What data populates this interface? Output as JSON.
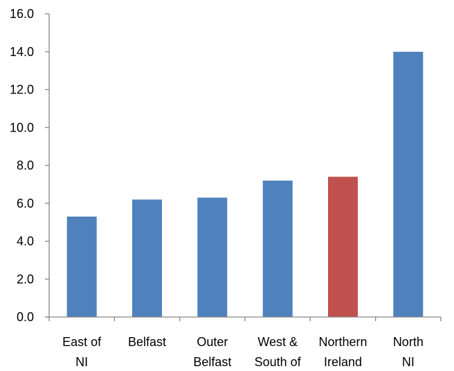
{
  "chart_data": {
    "type": "bar",
    "categories": [
      [
        "East of",
        "NI"
      ],
      [
        "Belfast"
      ],
      [
        "Outer",
        "Belfast"
      ],
      [
        "West &",
        "South of"
      ],
      [
        "Northern",
        "Ireland"
      ],
      [
        "North",
        "NI"
      ]
    ],
    "values": [
      5.3,
      6.2,
      6.3,
      7.2,
      7.4,
      14.0
    ],
    "bar_colors": [
      "#4f81bd",
      "#4f81bd",
      "#4f81bd",
      "#4f81bd",
      "#c0504d",
      "#4f81bd"
    ],
    "y_ticks": [
      "0.0",
      "2.0",
      "4.0",
      "6.0",
      "8.0",
      "10.0",
      "12.0",
      "14.0",
      "16.0"
    ],
    "ylim": [
      0,
      16
    ],
    "title": "",
    "xlabel": "",
    "ylabel": "",
    "grid": false,
    "legend": "none"
  }
}
